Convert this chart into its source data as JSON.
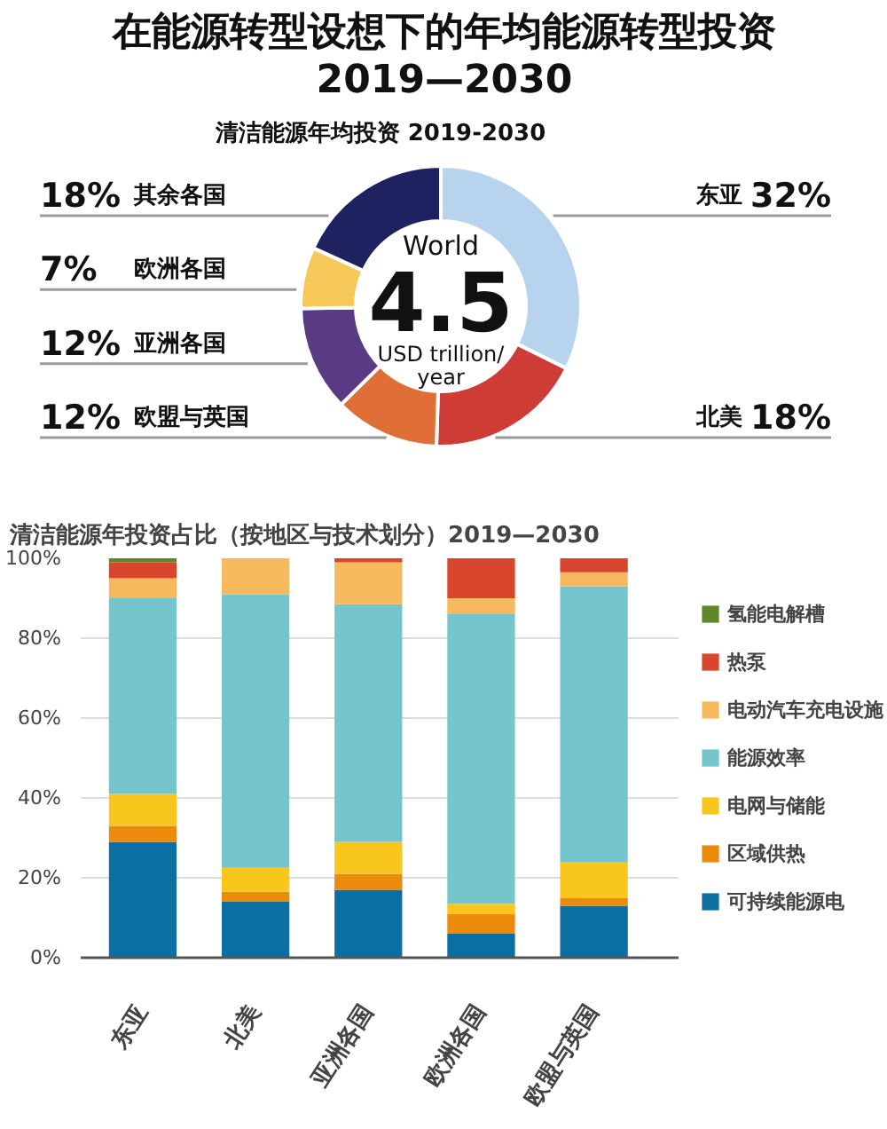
{
  "chart_data": [
    {
      "type": "donut",
      "title": "在能源转型设想下的年均能源转型投资\n2019—2030",
      "subtitle": "清洁能源年均投资 2019-2030",
      "categories": [
        "东亚",
        "北美",
        "欧盟与英国",
        "亚洲各国",
        "欧洲各国",
        "其余各国"
      ],
      "values": [
        32,
        18,
        12,
        12,
        7,
        18
      ],
      "colors": [
        "#b8d3ee",
        "#cf3b35",
        "#df6f37",
        "#5a3b83",
        "#f6c759",
        "#1e2260"
      ],
      "value_labels": [
        "32%",
        "18%",
        "12%",
        "12%",
        "7%",
        "18%"
      ],
      "annotations": [
        "World",
        "4.5",
        "USD trillion/",
        "year"
      ]
    },
    {
      "type": "bar",
      "stacked": true,
      "title": "清洁能源年投资占比（按地区与技术划分）2019—2030",
      "categories": [
        "东亚",
        "北美",
        "亚洲各国",
        "欧洲各国",
        "欧盟与英国"
      ],
      "ylim": [
        0,
        100
      ],
      "yticks": [
        {
          "value": 0,
          "label": "0%"
        },
        {
          "value": 20,
          "label": "20%"
        },
        {
          "value": 40,
          "label": "40%"
        },
        {
          "value": 60,
          "label": "60%"
        },
        {
          "value": 80,
          "label": "80%"
        },
        {
          "value": 100,
          "label": "100%"
        }
      ],
      "grid": "y",
      "legend": "right",
      "series": [
        {
          "name": "可持续能源电",
          "color": "#0b6fa4",
          "values": [
            29,
            14,
            17,
            6,
            13
          ]
        },
        {
          "name": "区域供热",
          "color": "#ec8a0b",
          "values": [
            4,
            2.5,
            4,
            5,
            2
          ]
        },
        {
          "name": "电网与储能",
          "color": "#f8c61d",
          "values": [
            8,
            6,
            8,
            2.5,
            9
          ]
        },
        {
          "name": "能源效率",
          "color": "#75c6cc",
          "values": [
            49,
            68.5,
            59.5,
            72.5,
            69
          ]
        },
        {
          "name": "电动汽车充电设施",
          "color": "#f6b95e",
          "values": [
            5,
            9,
            10.5,
            4,
            3.5
          ]
        },
        {
          "name": "热泵",
          "color": "#d8462d",
          "values": [
            4,
            0,
            1,
            10,
            3.5
          ]
        },
        {
          "name": "氢能电解槽",
          "color": "#60862a",
          "values": [
            1,
            0,
            0,
            0,
            0
          ]
        }
      ]
    }
  ]
}
